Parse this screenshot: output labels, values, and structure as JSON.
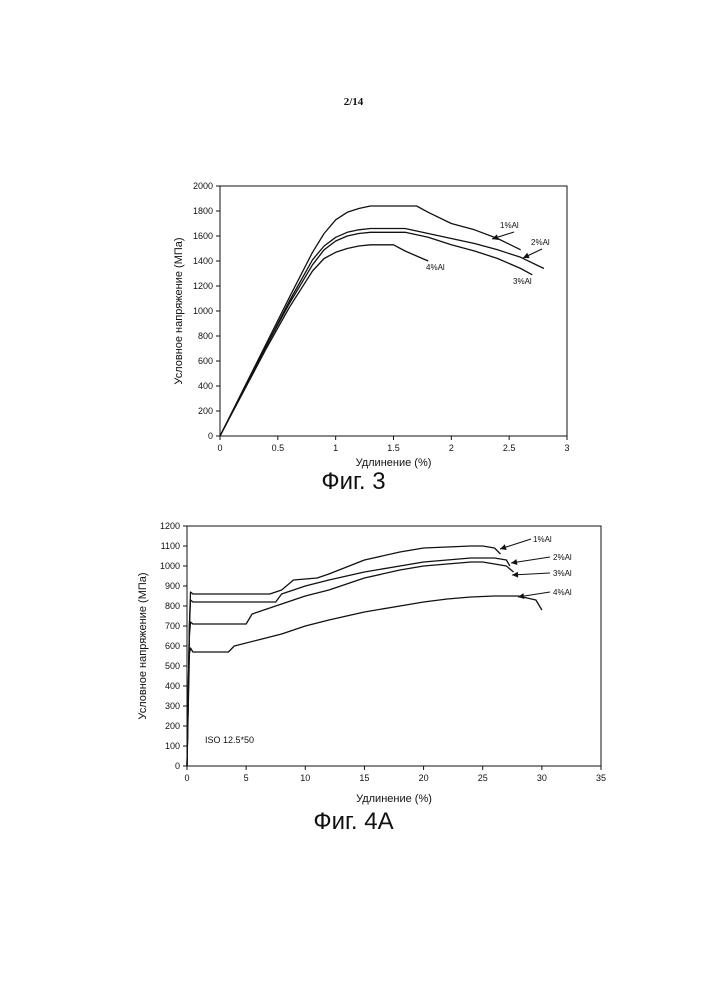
{
  "page_number": "2/14",
  "chart_data": [
    {
      "type": "line",
      "title": "",
      "caption": "Фиг. 3",
      "xlabel": "Удлинение (%)",
      "ylabel": "Условное напряжение (МПа)",
      "xlim": [
        0,
        3
      ],
      "ylim": [
        0,
        2000
      ],
      "xticks": [
        0,
        0.5,
        1,
        1.5,
        2,
        2.5,
        3
      ],
      "xtick_labels": [
        "0",
        "0.5",
        "1",
        "1.5",
        "2",
        "2.5",
        "3"
      ],
      "yticks": [
        0,
        200,
        400,
        600,
        800,
        1000,
        1200,
        1400,
        1600,
        1800,
        2000
      ],
      "ytick_labels": [
        "0",
        "200",
        "400",
        "600",
        "800",
        "1000",
        "1200",
        "1400",
        "1600",
        "1800",
        "2000"
      ],
      "grid": false,
      "series": [
        {
          "name": "1%Al",
          "x": [
            0,
            0.2,
            0.4,
            0.6,
            0.8,
            0.9,
            1.0,
            1.1,
            1.2,
            1.3,
            1.5,
            1.7,
            1.8,
            2.0,
            2.2,
            2.4,
            2.6
          ],
          "y": [
            0,
            370,
            740,
            1110,
            1470,
            1620,
            1730,
            1790,
            1820,
            1840,
            1840,
            1840,
            1790,
            1700,
            1650,
            1580,
            1490
          ]
        },
        {
          "name": "2%Al",
          "x": [
            0,
            0.2,
            0.4,
            0.6,
            0.8,
            0.9,
            1.0,
            1.1,
            1.2,
            1.3,
            1.6,
            1.8,
            2.0,
            2.2,
            2.4,
            2.6,
            2.8
          ],
          "y": [
            0,
            360,
            720,
            1080,
            1410,
            1520,
            1590,
            1630,
            1650,
            1660,
            1660,
            1620,
            1580,
            1540,
            1490,
            1430,
            1340
          ]
        },
        {
          "name": "3%Al",
          "x": [
            0,
            0.2,
            0.4,
            0.6,
            0.8,
            0.9,
            1.0,
            1.1,
            1.2,
            1.3,
            1.6,
            1.8,
            2.0,
            2.2,
            2.4,
            2.6,
            2.7
          ],
          "y": [
            0,
            360,
            720,
            1060,
            1370,
            1490,
            1560,
            1600,
            1620,
            1630,
            1630,
            1590,
            1530,
            1480,
            1420,
            1340,
            1290
          ]
        },
        {
          "name": "4%Al",
          "x": [
            0,
            0.2,
            0.4,
            0.6,
            0.8,
            0.9,
            1.0,
            1.1,
            1.2,
            1.3,
            1.5,
            1.6,
            1.7,
            1.8
          ],
          "y": [
            0,
            350,
            700,
            1030,
            1320,
            1420,
            1470,
            1500,
            1520,
            1530,
            1530,
            1480,
            1440,
            1400
          ]
        }
      ],
      "annotations": [
        "1%Al",
        "2%Al",
        "3%Al",
        "4%Al"
      ]
    },
    {
      "type": "line",
      "title": "",
      "caption": "Фиг. 4А",
      "xlabel": "Удлинение (%)",
      "ylabel": "Условное напряжение (МПа)",
      "xlim": [
        0,
        35
      ],
      "ylim": [
        0,
        1200
      ],
      "xticks": [
        0,
        5,
        10,
        15,
        20,
        25,
        30,
        35
      ],
      "xtick_labels": [
        "0",
        "5",
        "10",
        "15",
        "20",
        "25",
        "30",
        "35"
      ],
      "yticks": [
        0,
        100,
        200,
        300,
        400,
        500,
        600,
        700,
        800,
        900,
        1000,
        1100,
        1200
      ],
      "ytick_labels": [
        "0",
        "100",
        "200",
        "300",
        "400",
        "500",
        "600",
        "700",
        "800",
        "900",
        "1000",
        "1100",
        "1200"
      ],
      "grid": false,
      "note": "ISO 12.5*50",
      "series": [
        {
          "name": "1%Al",
          "x": [
            0,
            0.2,
            0.3,
            0.5,
            3,
            7,
            8,
            9,
            11,
            12,
            15,
            18,
            20,
            22,
            24,
            25,
            26,
            26.5
          ],
          "y": [
            0,
            700,
            870,
            860,
            860,
            860,
            880,
            930,
            940,
            960,
            1030,
            1070,
            1090,
            1095,
            1100,
            1100,
            1090,
            1060
          ]
        },
        {
          "name": "2%Al",
          "x": [
            0,
            0.2,
            0.3,
            0.5,
            3,
            7.5,
            8,
            10,
            12,
            15,
            18,
            20,
            22,
            24,
            25,
            26,
            27,
            27.3
          ],
          "y": [
            0,
            700,
            830,
            820,
            820,
            820,
            860,
            900,
            930,
            970,
            1000,
            1020,
            1030,
            1040,
            1040,
            1040,
            1030,
            1000
          ]
        },
        {
          "name": "3%Al",
          "x": [
            0,
            0.2,
            0.3,
            0.5,
            3,
            5,
            5.5,
            8,
            10,
            12,
            15,
            18,
            20,
            22,
            24,
            25,
            26,
            27,
            27.6
          ],
          "y": [
            0,
            650,
            720,
            710,
            710,
            710,
            760,
            810,
            850,
            880,
            940,
            980,
            1000,
            1010,
            1020,
            1020,
            1010,
            1000,
            970
          ]
        },
        {
          "name": "4%Al",
          "x": [
            0,
            0.2,
            0.3,
            0.5,
            2,
            3.5,
            4,
            6,
            8,
            10,
            12,
            15,
            18,
            20,
            22,
            24,
            26,
            28,
            29.5,
            30
          ],
          "y": [
            0,
            560,
            590,
            570,
            570,
            570,
            600,
            630,
            660,
            700,
            730,
            770,
            800,
            820,
            835,
            845,
            850,
            850,
            830,
            780
          ]
        }
      ],
      "annotations": [
        "1%Al",
        "2%Al",
        "3%Al",
        "4%Al"
      ]
    }
  ]
}
